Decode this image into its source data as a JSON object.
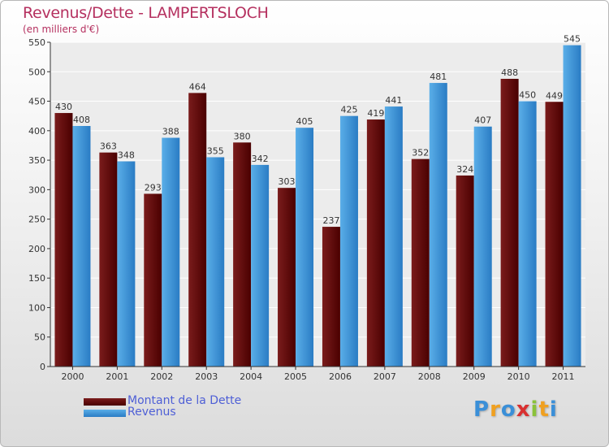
{
  "chart_data": {
    "type": "bar",
    "title": "Revenus/Dette - LAMPERTSLOCH",
    "subtitle": "(en milliers d'€)",
    "categories": [
      "2000",
      "2001",
      "2002",
      "2003",
      "2004",
      "2005",
      "2006",
      "2007",
      "2008",
      "2009",
      "2010",
      "2011"
    ],
    "series": [
      {
        "name": "Montant de la Dette",
        "color": "#6b1515",
        "values": [
          430,
          363,
          293,
          464,
          380,
          303,
          237,
          419,
          352,
          324,
          488,
          449
        ]
      },
      {
        "name": "Revenus",
        "color": "#3f95da",
        "values": [
          408,
          348,
          388,
          355,
          342,
          405,
          425,
          441,
          481,
          407,
          450,
          545
        ]
      }
    ],
    "ylim": [
      0,
      550
    ],
    "yticks": [
      "0",
      "50",
      "100",
      "150",
      "200",
      "250",
      "300",
      "350",
      "400",
      "450",
      "500",
      "550"
    ],
    "grid": true,
    "legend_position": "bottom-left"
  },
  "logo": {
    "letters": [
      "P",
      "r",
      "o",
      "x",
      "i",
      "t",
      "i"
    ],
    "colors": [
      "#3a8fd8",
      "#f0a020",
      "#3a8fd8",
      "#d93030",
      "#8ac23a",
      "#f0a020",
      "#3a8fd8"
    ]
  }
}
